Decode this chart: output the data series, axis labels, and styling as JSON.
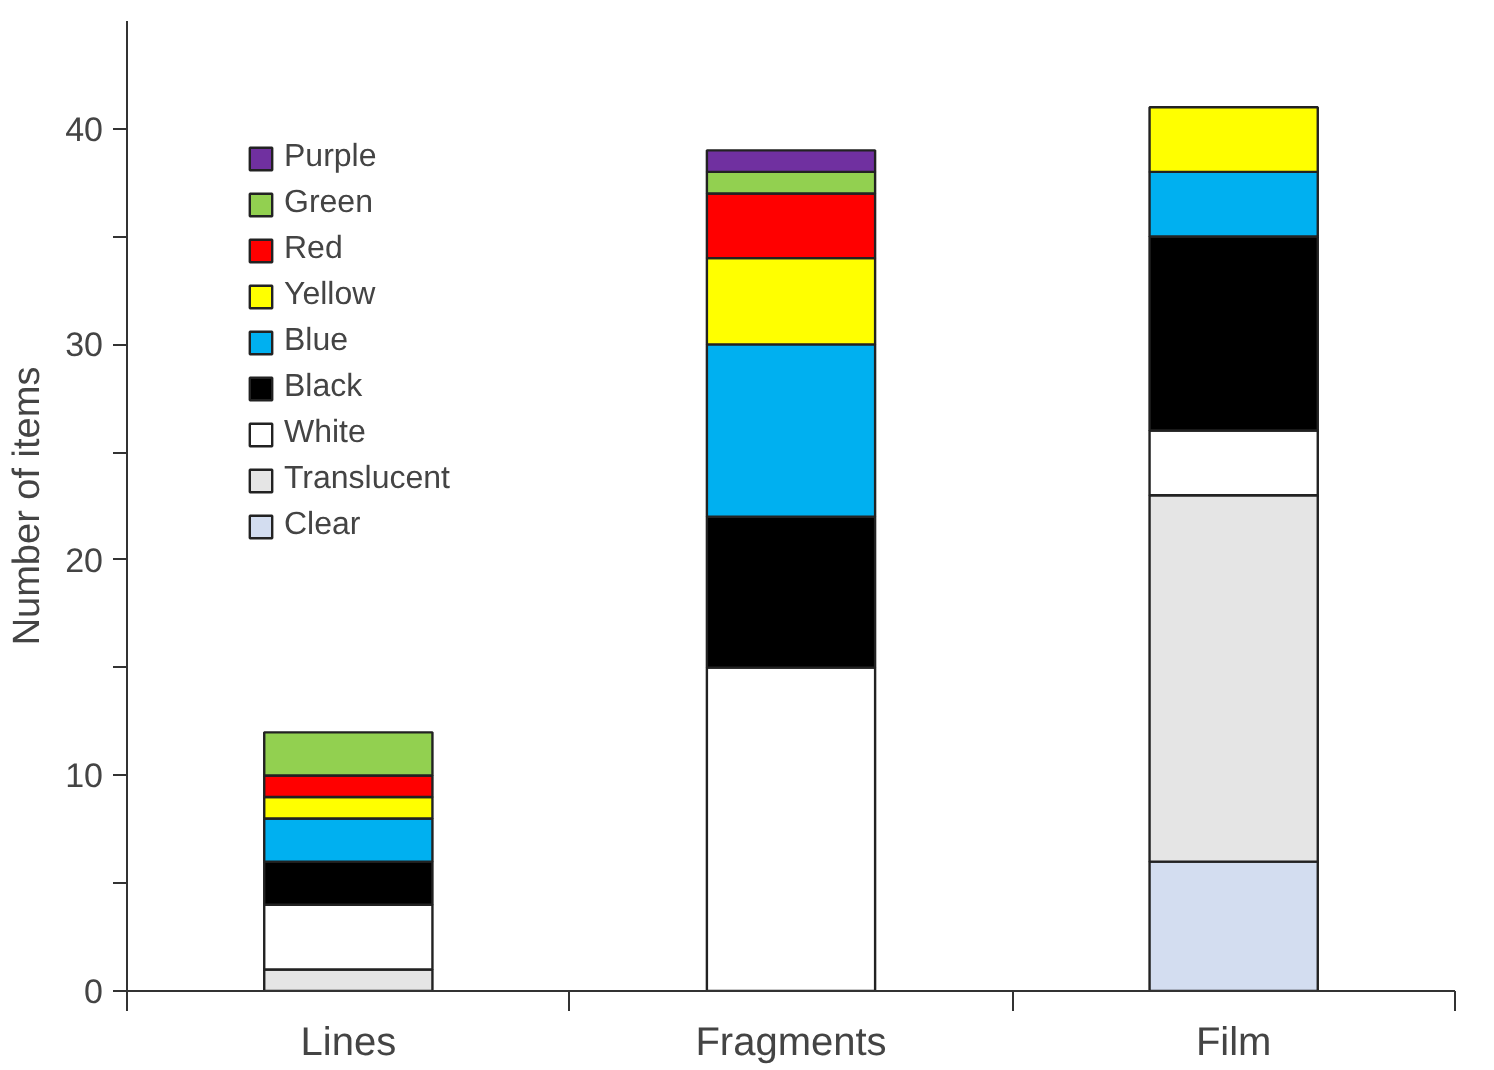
{
  "chart_data": {
    "type": "bar",
    "stacked": true,
    "ylabel": "Number of items",
    "categories": [
      "Lines",
      "Fragments",
      "Film"
    ],
    "series": [
      {
        "name": "Clear",
        "color": "#d3ddf0",
        "values": [
          0,
          0,
          6
        ]
      },
      {
        "name": "Translucent",
        "color": "#e5e5e5",
        "values": [
          1,
          0,
          17
        ]
      },
      {
        "name": "White",
        "color": "#ffffff",
        "values": [
          3,
          15,
          3
        ]
      },
      {
        "name": "Black",
        "color": "#000000",
        "values": [
          2,
          7,
          9
        ]
      },
      {
        "name": "Blue",
        "color": "#00b0f0",
        "values": [
          2,
          8,
          3
        ]
      },
      {
        "name": "Yellow",
        "color": "#ffff00",
        "values": [
          1,
          4,
          3
        ]
      },
      {
        "name": "Red",
        "color": "#ff0000",
        "values": [
          1,
          3,
          0
        ]
      },
      {
        "name": "Green",
        "color": "#92d050",
        "values": [
          2,
          1,
          0
        ]
      },
      {
        "name": "Purple",
        "color": "#7030a0",
        "values": [
          0,
          1,
          0
        ]
      }
    ],
    "ylim": [
      0,
      45
    ],
    "yticks": [
      0,
      {
        "value": 5,
        "label": null
      },
      10,
      {
        "value": 15,
        "label": null
      },
      20,
      {
        "value": 25,
        "label": null
      },
      30,
      {
        "value": 35,
        "label": null
      },
      40
    ],
    "grid": false,
    "legend": "top left"
  }
}
